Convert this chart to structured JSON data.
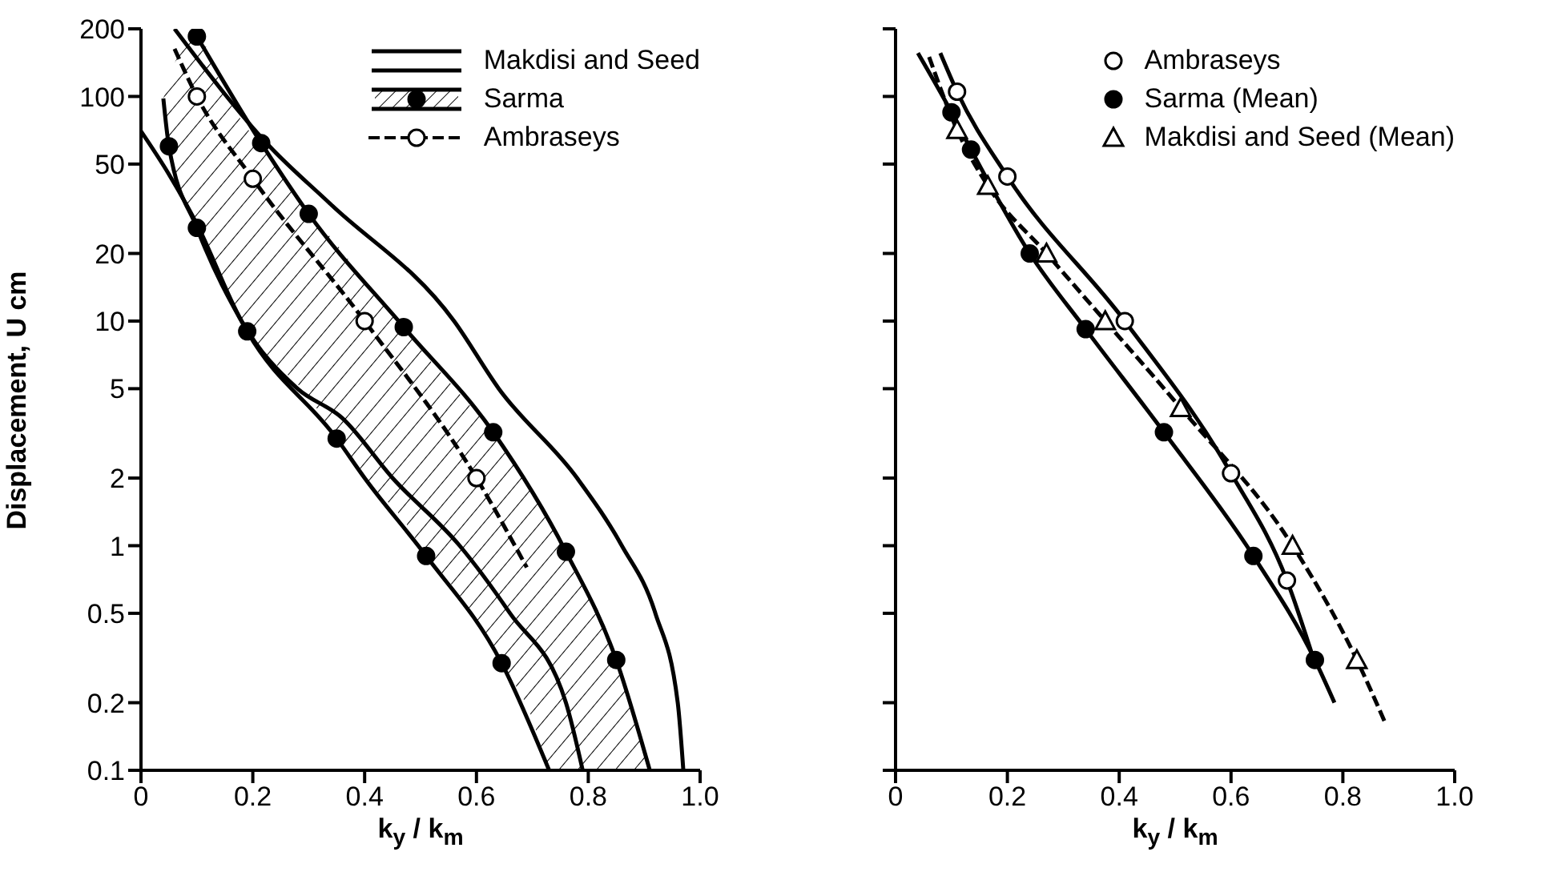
{
  "chart_data": [
    {
      "type": "line",
      "ylabel": "Displacement, U cm",
      "xlabel": "k$_{y}$ / k$_{m}$",
      "log": "y",
      "legend": "top right",
      "xlim": [
        0,
        1
      ],
      "xticks": [
        0,
        0.2,
        0.4,
        0.6,
        0.8,
        {
          "value": 1,
          "label": "1.0"
        }
      ],
      "ylim": [
        0.1,
        200
      ],
      "yticks": [
        0.1,
        0.2,
        0.5,
        1,
        2,
        5,
        10,
        20,
        50,
        100,
        200
      ],
      "series": [
        {
          "type": "line",
          "name": "Makdisi and Seed",
          "color": "#000000",
          "marker": "none",
          "line_style": "solid",
          "x": [
            0.06,
            0.23,
            0.34,
            0.56,
            0.64,
            0.78,
            0.86,
            0.92,
            0.96,
            0.97
          ],
          "values": [
            200,
            60,
            33,
            10,
            5,
            2,
            1,
            0.5,
            0.2,
            0.1
          ]
        },
        {
          "type": "line",
          "color": "#000000",
          "marker": "none",
          "line_style": "solid",
          "x": [
            0.0,
            0.05,
            0.1,
            0.18,
            0.28,
            0.36,
            0.45,
            0.57,
            0.66,
            0.76,
            0.79
          ],
          "values": [
            70,
            45,
            27,
            10,
            5,
            3.7,
            2,
            1,
            0.5,
            0.2,
            0.1
          ]
        },
        {
          "type": "line",
          "name": "Sarma",
          "color": "#000000",
          "marker": "none",
          "line_style": "solid",
          "x": [
            0.1,
            0.215,
            0.3,
            0.47,
            0.63,
            0.76,
            0.85,
            0.91
          ],
          "values": [
            185,
            62,
            30,
            9.4,
            3.2,
            0.94,
            0.31,
            0.1
          ]
        },
        {
          "type": "line",
          "color": "#000000",
          "marker": "none",
          "line_style": "solid",
          "x": [
            0.04,
            0.05,
            0.1,
            0.19,
            0.35,
            0.4,
            0.51,
            0.645,
            0.73
          ],
          "values": [
            98,
            60,
            26,
            9,
            3,
            2,
            0.9,
            0.3,
            0.1
          ]
        },
        {
          "type": "area",
          "color": "#000000",
          "x": [
            0.04,
            0.05,
            0.1,
            0.15,
            0.19,
            0.215,
            0.3,
            0.35,
            0.4,
            0.47,
            0.51,
            0.55,
            0.63,
            0.645,
            0.7,
            0.73,
            0.76,
            0.8,
            0.85,
            0.91
          ],
          "values": [
            null,
            null,
            null,
            null,
            null,
            null,
            null,
            null,
            null,
            null,
            null,
            null,
            null,
            null,
            null,
            null,
            null,
            null,
            null,
            null
          ],
          "lower": [
            98,
            60,
            26,
            14,
            9,
            7.5,
            4.6,
            3,
            2,
            1.3,
            0.9,
            0.7,
            0.35,
            0.3,
            0.17,
            0.1,
            0.1,
            0.1,
            0.1,
            0.1
          ],
          "upper": [
            98,
            120,
            185,
            105,
            72,
            62,
            30,
            22,
            15,
            9.4,
            7,
            5.4,
            3.2,
            2.9,
            1.7,
            1.3,
            0.94,
            0.6,
            0.31,
            0.1
          ]
        },
        {
          "type": "scatter",
          "color": "#000000",
          "marker": "circle",
          "x": [
            0.1,
            0.215,
            0.3,
            0.47,
            0.63,
            0.76,
            0.85,
            0.05,
            0.1,
            0.19,
            0.35,
            0.51,
            0.645
          ],
          "values": [
            185,
            62,
            30,
            9.4,
            3.2,
            0.94,
            0.31,
            60,
            26,
            9,
            3,
            0.9,
            0.3
          ]
        },
        {
          "type": "line",
          "name": "Ambraseys",
          "color": "#000000",
          "marker": "none",
          "line_style": "dashed",
          "x": [
            0.06,
            0.1,
            0.2,
            0.4,
            0.6,
            0.69
          ],
          "values": [
            163,
            100,
            43,
            10,
            2,
            0.8
          ]
        },
        {
          "type": "scatter",
          "color": "#ffffff",
          "marker": "circle",
          "x": [
            0.1,
            0.2,
            0.4,
            0.6
          ],
          "values": [
            100,
            43,
            10,
            2
          ]
        }
      ]
    },
    {
      "type": "line",
      "xlabel": "k$_{y}$ / k$_{m}$",
      "log": "y",
      "legend": "top right",
      "tick_labels": "x",
      "xlim": [
        0,
        1
      ],
      "xticks": [
        0,
        0.2,
        0.4,
        0.6,
        0.8,
        {
          "value": 1,
          "label": "1.0"
        }
      ],
      "ylim": [
        0.1,
        200
      ],
      "yticks": [
        0.1,
        0.2,
        0.5,
        1,
        2,
        5,
        10,
        20,
        50,
        100,
        200
      ],
      "series": [
        {
          "type": "line",
          "color": "#000000",
          "marker": "none",
          "line_style": "solid",
          "x": [
            0.08,
            0.11,
            0.2,
            0.41,
            0.6,
            0.7,
            0.75
          ],
          "values": [
            156,
            105,
            44,
            10,
            2.1,
            0.7,
            0.3
          ]
        },
        {
          "type": "scatter",
          "name": "Ambraseys",
          "color": "#ffffff",
          "marker": "circle",
          "x": [
            0.11,
            0.2,
            0.41,
            0.6,
            0.7
          ],
          "values": [
            105,
            44,
            10,
            2.1,
            0.7
          ]
        },
        {
          "type": "line",
          "color": "#000000",
          "marker": "none",
          "line_style": "solid",
          "x": [
            0.04,
            0.1,
            0.135,
            0.24,
            0.34,
            0.48,
            0.64,
            0.75,
            0.785
          ],
          "values": [
            156,
            85,
            58,
            20,
            9.2,
            3.2,
            0.9,
            0.31,
            0.2
          ]
        },
        {
          "type": "scatter",
          "name": "Sarma (Mean)",
          "color": "#000000",
          "marker": "circle",
          "x": [
            0.1,
            0.135,
            0.24,
            0.34,
            0.48,
            0.64,
            0.75
          ],
          "values": [
            85,
            58,
            20,
            9.2,
            3.2,
            0.9,
            0.31
          ]
        },
        {
          "type": "line",
          "color": "#000000",
          "marker": "none",
          "line_style": "dashed",
          "x": [
            0.06,
            0.11,
            0.165,
            0.27,
            0.375,
            0.51,
            0.71,
            0.825,
            0.877
          ],
          "values": [
            150,
            71,
            40,
            20,
            10,
            4.1,
            1.0,
            0.31,
            0.16
          ]
        },
        {
          "type": "scatter",
          "name": "Makdisi and Seed (Mean)",
          "color": "#ffffff",
          "marker": "triangle",
          "x": [
            0.11,
            0.165,
            0.27,
            0.375,
            0.51,
            0.71,
            0.825
          ],
          "values": [
            71,
            40,
            20,
            10,
            4.1,
            1.0,
            0.31
          ]
        }
      ]
    }
  ]
}
